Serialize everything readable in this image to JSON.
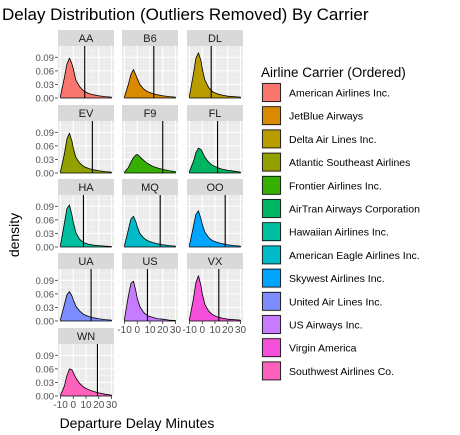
{
  "chart_data": {
    "type": "area",
    "title": "Delay Distribution (Outliers Removed) By Carrier",
    "xlabel": "Departure Delay Minutes",
    "ylabel": "density",
    "xlim": [
      -12,
      32
    ],
    "ylim": [
      0,
      0.115
    ],
    "xticks": [
      -10,
      0,
      10,
      20,
      30
    ],
    "xtick_labels": [
      "-10",
      "0",
      "10",
      "20",
      "30"
    ],
    "yticks": [
      0.0,
      0.03,
      0.06,
      0.09
    ],
    "ytick_labels": [
      "0.00",
      "0.03",
      "0.06",
      "0.09"
    ],
    "grid": true,
    "legend_position": "right",
    "legend_title": "Airline Carrier (Ordered)",
    "x": [
      -10,
      -7,
      -5,
      -3,
      -1,
      0,
      2,
      5,
      8,
      12,
      16,
      20,
      25,
      30
    ],
    "series": [
      {
        "panel": "AA",
        "name": "American Airlines Inc.",
        "color": "#F8766D",
        "vline": 9,
        "values": [
          0.005,
          0.045,
          0.075,
          0.088,
          0.075,
          0.065,
          0.04,
          0.025,
          0.016,
          0.01,
          0.007,
          0.005,
          0.003,
          0.002
        ]
      },
      {
        "panel": "B6",
        "name": "JetBlue Airways",
        "color": "#D98A00",
        "vline": 13,
        "values": [
          0.003,
          0.03,
          0.052,
          0.063,
          0.05,
          0.043,
          0.03,
          0.02,
          0.014,
          0.01,
          0.007,
          0.005,
          0.003,
          0.002
        ]
      },
      {
        "panel": "DL",
        "name": "Delta Air Lines Inc.",
        "color": "#B89C00",
        "vline": 7,
        "values": [
          0.006,
          0.052,
          0.088,
          0.1,
          0.082,
          0.065,
          0.04,
          0.023,
          0.014,
          0.009,
          0.006,
          0.004,
          0.003,
          0.002
        ]
      },
      {
        "panel": "EV",
        "name": "Atlantic Southeast Airlines",
        "color": "#93A000",
        "vline": 15,
        "values": [
          0.004,
          0.042,
          0.075,
          0.088,
          0.07,
          0.055,
          0.035,
          0.022,
          0.015,
          0.01,
          0.007,
          0.005,
          0.003,
          0.002
        ]
      },
      {
        "panel": "F9",
        "name": "Frontier Airlines Inc.",
        "color": "#36B000",
        "vline": 20,
        "values": [
          0.002,
          0.012,
          0.024,
          0.034,
          0.04,
          0.041,
          0.036,
          0.028,
          0.021,
          0.015,
          0.011,
          0.008,
          0.005,
          0.003
        ]
      },
      {
        "panel": "FL",
        "name": "AirTran Airways Corporation",
        "color": "#00B561",
        "vline": 12,
        "values": [
          0.004,
          0.025,
          0.045,
          0.055,
          0.052,
          0.047,
          0.035,
          0.024,
          0.017,
          0.012,
          0.008,
          0.006,
          0.004,
          0.002
        ]
      },
      {
        "panel": "HA",
        "name": "Hawaiian Airlines Inc.",
        "color": "#00BEA0",
        "vline": 8,
        "values": [
          0.005,
          0.052,
          0.085,
          0.093,
          0.07,
          0.055,
          0.032,
          0.017,
          0.01,
          0.006,
          0.004,
          0.003,
          0.002,
          0.001
        ]
      },
      {
        "panel": "MQ",
        "name": "American Eagle Airlines Inc.",
        "color": "#00B9C9",
        "vline": 18,
        "values": [
          0.004,
          0.038,
          0.062,
          0.068,
          0.055,
          0.045,
          0.03,
          0.02,
          0.014,
          0.01,
          0.007,
          0.005,
          0.003,
          0.002
        ]
      },
      {
        "panel": "OO",
        "name": "Skywest Airlines Inc.",
        "color": "#00A5FF",
        "vline": 18,
        "values": [
          0.005,
          0.045,
          0.072,
          0.08,
          0.062,
          0.05,
          0.033,
          0.021,
          0.014,
          0.01,
          0.007,
          0.005,
          0.003,
          0.002
        ]
      },
      {
        "panel": "UA",
        "name": "United Air Lines Inc.",
        "color": "#7D8CFF",
        "vline": 14,
        "values": [
          0.004,
          0.036,
          0.058,
          0.065,
          0.055,
          0.047,
          0.033,
          0.022,
          0.015,
          0.01,
          0.007,
          0.005,
          0.003,
          0.002
        ]
      },
      {
        "panel": "US",
        "name": "US Airways Inc.",
        "color": "#C77CFF",
        "vline": 8,
        "values": [
          0.006,
          0.055,
          0.083,
          0.088,
          0.065,
          0.05,
          0.032,
          0.019,
          0.012,
          0.008,
          0.005,
          0.004,
          0.002,
          0.001
        ]
      },
      {
        "panel": "VX",
        "name": "Virgin America",
        "color": "#F64FD9",
        "vline": 13,
        "values": [
          0.005,
          0.048,
          0.085,
          0.1,
          0.078,
          0.06,
          0.037,
          0.022,
          0.014,
          0.009,
          0.006,
          0.004,
          0.003,
          0.002
        ]
      },
      {
        "panel": "WN",
        "name": "Southwest Airlines Co.",
        "color": "#FF62BC",
        "vline": 19,
        "values": [
          0.002,
          0.022,
          0.045,
          0.06,
          0.058,
          0.052,
          0.04,
          0.028,
          0.02,
          0.014,
          0.01,
          0.007,
          0.004,
          0.002
        ]
      }
    ]
  }
}
